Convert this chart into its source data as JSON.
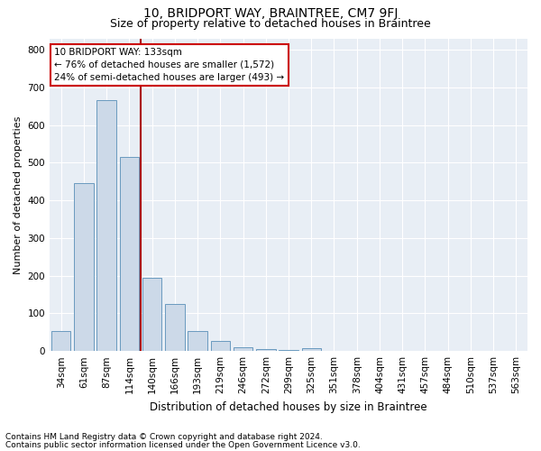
{
  "title": "10, BRIDPORT WAY, BRAINTREE, CM7 9FJ",
  "subtitle": "Size of property relative to detached houses in Braintree",
  "xlabel": "Distribution of detached houses by size in Braintree",
  "ylabel": "Number of detached properties",
  "categories": [
    "34sqm",
    "61sqm",
    "87sqm",
    "114sqm",
    "140sqm",
    "166sqm",
    "193sqm",
    "219sqm",
    "246sqm",
    "272sqm",
    "299sqm",
    "325sqm",
    "351sqm",
    "378sqm",
    "404sqm",
    "431sqm",
    "457sqm",
    "484sqm",
    "510sqm",
    "537sqm",
    "563sqm"
  ],
  "values": [
    52,
    445,
    665,
    515,
    195,
    125,
    52,
    27,
    10,
    5,
    2,
    8,
    0,
    0,
    0,
    0,
    0,
    0,
    0,
    0,
    0
  ],
  "bar_color": "#ccd9e8",
  "bar_edge_color": "#6a9abf",
  "vline_color": "#aa0000",
  "annotation_text": "10 BRIDPORT WAY: 133sqm\n← 76% of detached houses are smaller (1,572)\n24% of semi-detached houses are larger (493) →",
  "annotation_box_color": "white",
  "annotation_box_edge": "#cc0000",
  "ylim": [
    0,
    830
  ],
  "yticks": [
    0,
    100,
    200,
    300,
    400,
    500,
    600,
    700,
    800
  ],
  "footer_line1": "Contains HM Land Registry data © Crown copyright and database right 2024.",
  "footer_line2": "Contains public sector information licensed under the Open Government Licence v3.0.",
  "bg_color": "#e8eef5",
  "fig_bg_color": "#ffffff",
  "title_fontsize": 10,
  "subtitle_fontsize": 9,
  "xlabel_fontsize": 8.5,
  "ylabel_fontsize": 8,
  "tick_fontsize": 7.5,
  "annot_fontsize": 7.5,
  "footer_fontsize": 6.5,
  "bar_width": 0.85,
  "vline_x": 3.5
}
